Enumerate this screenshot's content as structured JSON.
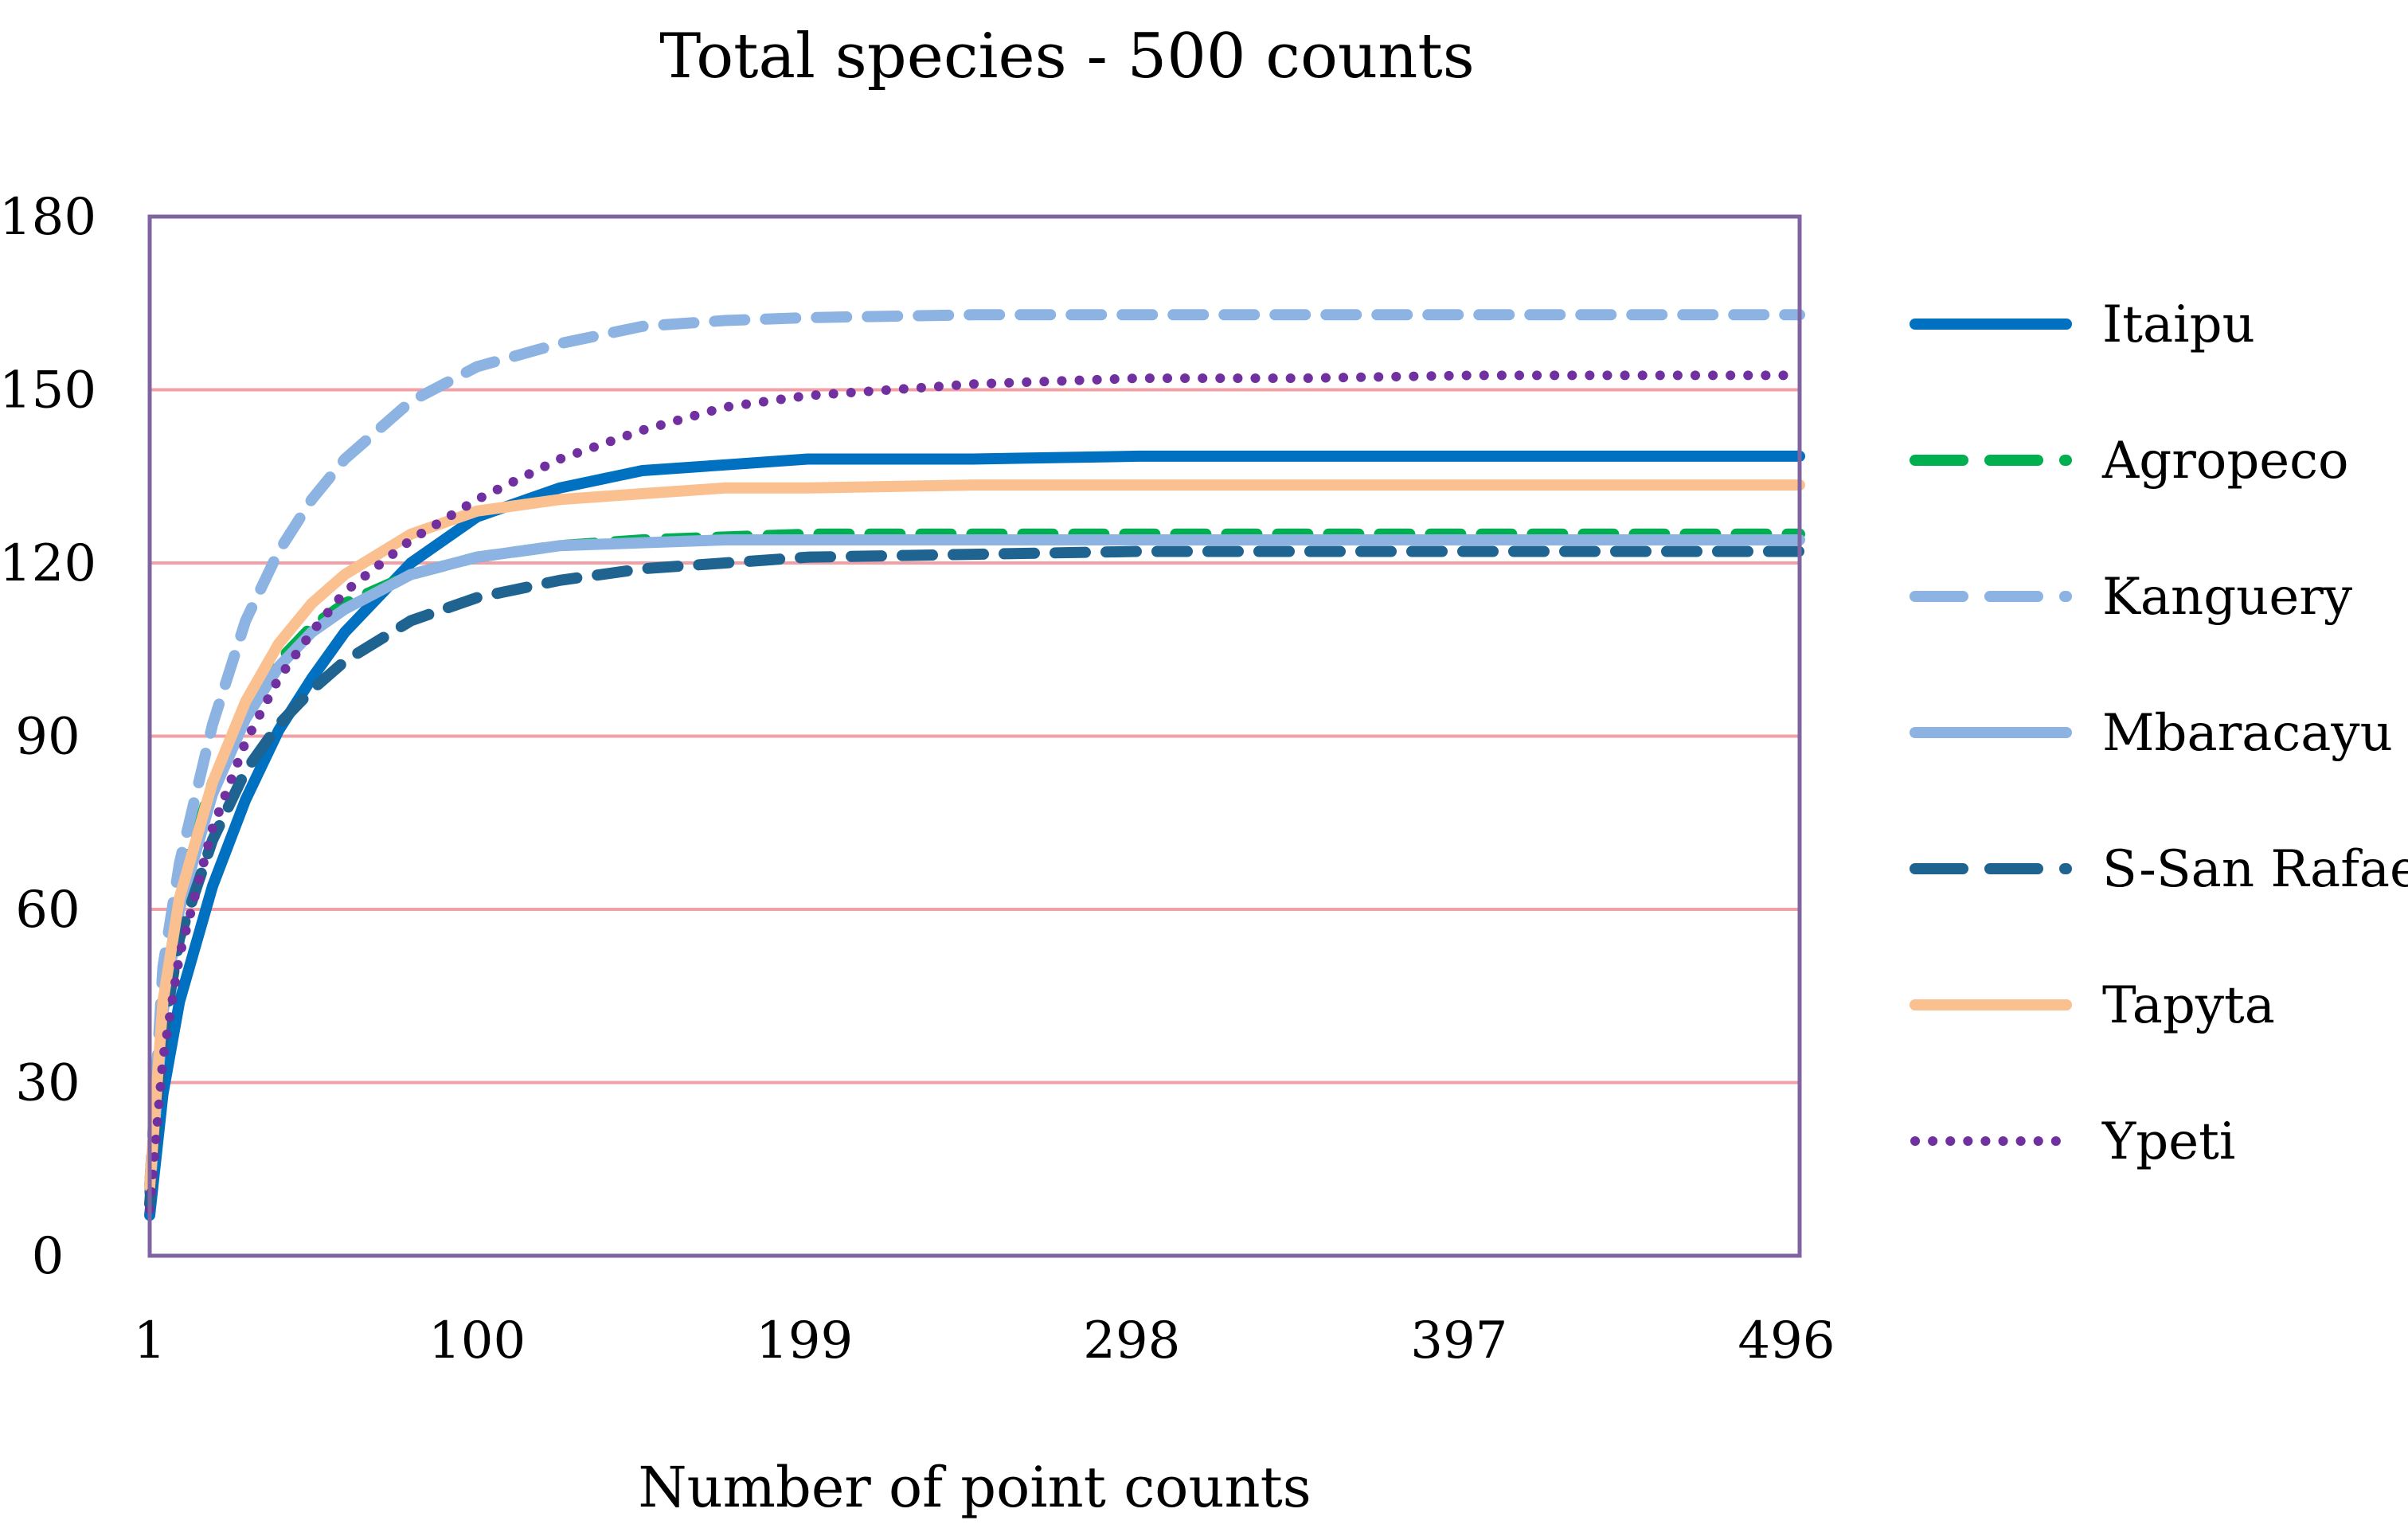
{
  "chart_data": {
    "type": "line",
    "title": "Total species - 500 counts",
    "xlabel": "Number of point counts",
    "ylabel": "",
    "xlim": [
      1,
      500
    ],
    "ylim": [
      0,
      180
    ],
    "yticks": [
      0,
      30,
      60,
      90,
      120,
      150,
      180
    ],
    "xticks": [
      {
        "value": 1,
        "label": "1"
      },
      {
        "value": 100,
        "label": "100"
      },
      {
        "value": 199,
        "label": "199"
      },
      {
        "value": 298,
        "label": "298"
      },
      {
        "value": 397,
        "label": "397"
      },
      {
        "value": 496,
        "label": "496"
      }
    ],
    "grid": "horizontal",
    "legend_position": "right",
    "series": [
      {
        "name": "Itaipu",
        "style": "solid",
        "color": "#0070c0",
        "x": [
          1,
          5,
          10,
          20,
          30,
          40,
          50,
          60,
          80,
          100,
          125,
          150,
          175,
          200,
          250,
          300,
          350,
          400,
          450,
          500
        ],
        "y": [
          7,
          28,
          44,
          64,
          79,
          91,
          100,
          108,
          120,
          128,
          133,
          136,
          137,
          138,
          138,
          138.5,
          138.5,
          138.5,
          138.5,
          138.5
        ]
      },
      {
        "name": "Agropeco",
        "style": "dashed",
        "color": "#00b050",
        "x": [
          1,
          5,
          10,
          20,
          30,
          40,
          50,
          60,
          80,
          100,
          125,
          150,
          175,
          200,
          250,
          300,
          350,
          400,
          450,
          500
        ],
        "y": [
          12,
          48,
          64,
          82,
          94,
          103,
          109,
          113,
          118,
          121,
          123,
          124,
          124.5,
          125,
          125,
          125,
          125,
          125,
          125,
          125
        ]
      },
      {
        "name": "Kanguery",
        "style": "dashed",
        "color": "#8db3e2",
        "x": [
          1,
          5,
          10,
          20,
          30,
          40,
          50,
          60,
          80,
          100,
          125,
          150,
          175,
          200,
          250,
          300,
          350,
          400,
          450,
          500
        ],
        "y": [
          12,
          50,
          68,
          92,
          110,
          122,
          131,
          138,
          148,
          154,
          158,
          161,
          162,
          162.5,
          163,
          163,
          163,
          163,
          163,
          163
        ]
      },
      {
        "name": "Mbaracayu",
        "style": "solid",
        "color": "#8db3e2",
        "x": [
          1,
          5,
          10,
          20,
          30,
          40,
          50,
          60,
          80,
          100,
          125,
          150,
          175,
          200,
          250,
          300,
          350,
          400,
          450,
          500
        ],
        "y": [
          11,
          42,
          60,
          80,
          93,
          102,
          108,
          112,
          118,
          121,
          123,
          123.5,
          124,
          124,
          124,
          124,
          124,
          124,
          124,
          124
        ]
      },
      {
        "name": "S-San Rafael",
        "style": "dashed",
        "color": "#1f6391",
        "x": [
          1,
          5,
          10,
          20,
          30,
          40,
          50,
          60,
          80,
          100,
          125,
          150,
          175,
          200,
          250,
          300,
          350,
          400,
          450,
          500
        ],
        "y": [
          9,
          38,
          55,
          72,
          84,
          92,
          98,
          103,
          110,
          114,
          117,
          119,
          120,
          121,
          121.5,
          122,
          122,
          122,
          122,
          122
        ]
      },
      {
        "name": "Tapyta",
        "style": "solid",
        "color": "#fac090",
        "x": [
          1,
          5,
          10,
          20,
          30,
          40,
          50,
          60,
          80,
          100,
          125,
          150,
          175,
          200,
          250,
          300,
          350,
          400,
          450,
          500
        ],
        "y": [
          12,
          44,
          62,
          82,
          96,
          106,
          113,
          118,
          125,
          129,
          131,
          132,
          133,
          133,
          133.5,
          133.5,
          133.5,
          133.5,
          133.5,
          133.5
        ]
      },
      {
        "name": "Ypeti",
        "style": "dotted",
        "color": "#7030a0",
        "x": [
          1,
          5,
          10,
          20,
          30,
          40,
          50,
          60,
          80,
          100,
          125,
          150,
          175,
          200,
          250,
          300,
          350,
          400,
          450,
          500
        ],
        "y": [
          8,
          34,
          52,
          74,
          89,
          100,
          108,
          115,
          124,
          131,
          138,
          143,
          147,
          149,
          151,
          152,
          152,
          152.5,
          152.5,
          152.5
        ]
      }
    ]
  }
}
